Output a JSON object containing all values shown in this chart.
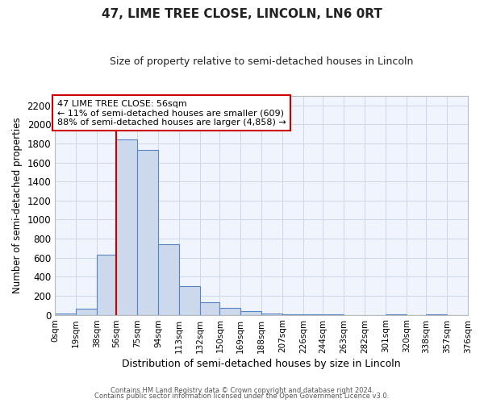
{
  "title": "47, LIME TREE CLOSE, LINCOLN, LN6 0RT",
  "subtitle": "Size of property relative to semi-detached houses in Lincoln",
  "xlabel": "Distribution of semi-detached houses by size in Lincoln",
  "ylabel": "Number of semi-detached properties",
  "bin_edges": [
    0,
    19,
    38,
    56,
    75,
    94,
    113,
    132,
    150,
    169,
    188,
    207,
    226,
    244,
    263,
    282,
    301,
    320,
    338,
    357,
    376
  ],
  "bin_counts": [
    15,
    60,
    630,
    1840,
    1730,
    745,
    305,
    135,
    70,
    40,
    15,
    5,
    5,
    5,
    0,
    0,
    5,
    0,
    5,
    0
  ],
  "bar_color": "#ccd9ec",
  "bar_edge_color": "#5585c5",
  "property_size": 56,
  "red_line_color": "#cc0000",
  "annotation_box_edge_color": "#cc0000",
  "annotation_text_line1": "47 LIME TREE CLOSE: 56sqm",
  "annotation_text_line2": "← 11% of semi-detached houses are smaller (609)",
  "annotation_text_line3": "88% of semi-detached houses are larger (4,858) →",
  "ylim": [
    0,
    2300
  ],
  "yticks": [
    0,
    200,
    400,
    600,
    800,
    1000,
    1200,
    1400,
    1600,
    1800,
    2000,
    2200
  ],
  "xtick_labels": [
    "0sqm",
    "19sqm",
    "38sqm",
    "56sqm",
    "75sqm",
    "94sqm",
    "113sqm",
    "132sqm",
    "150sqm",
    "169sqm",
    "188sqm",
    "207sqm",
    "226sqm",
    "244sqm",
    "263sqm",
    "282sqm",
    "301sqm",
    "320sqm",
    "338sqm",
    "357sqm",
    "376sqm"
  ],
  "grid_color": "#d0d8e8",
  "background_color": "#ffffff",
  "plot_bg_color": "#f0f4fc",
  "footnote1": "Contains HM Land Registry data © Crown copyright and database right 2024.",
  "footnote2": "Contains public sector information licensed under the Open Government Licence v3.0."
}
